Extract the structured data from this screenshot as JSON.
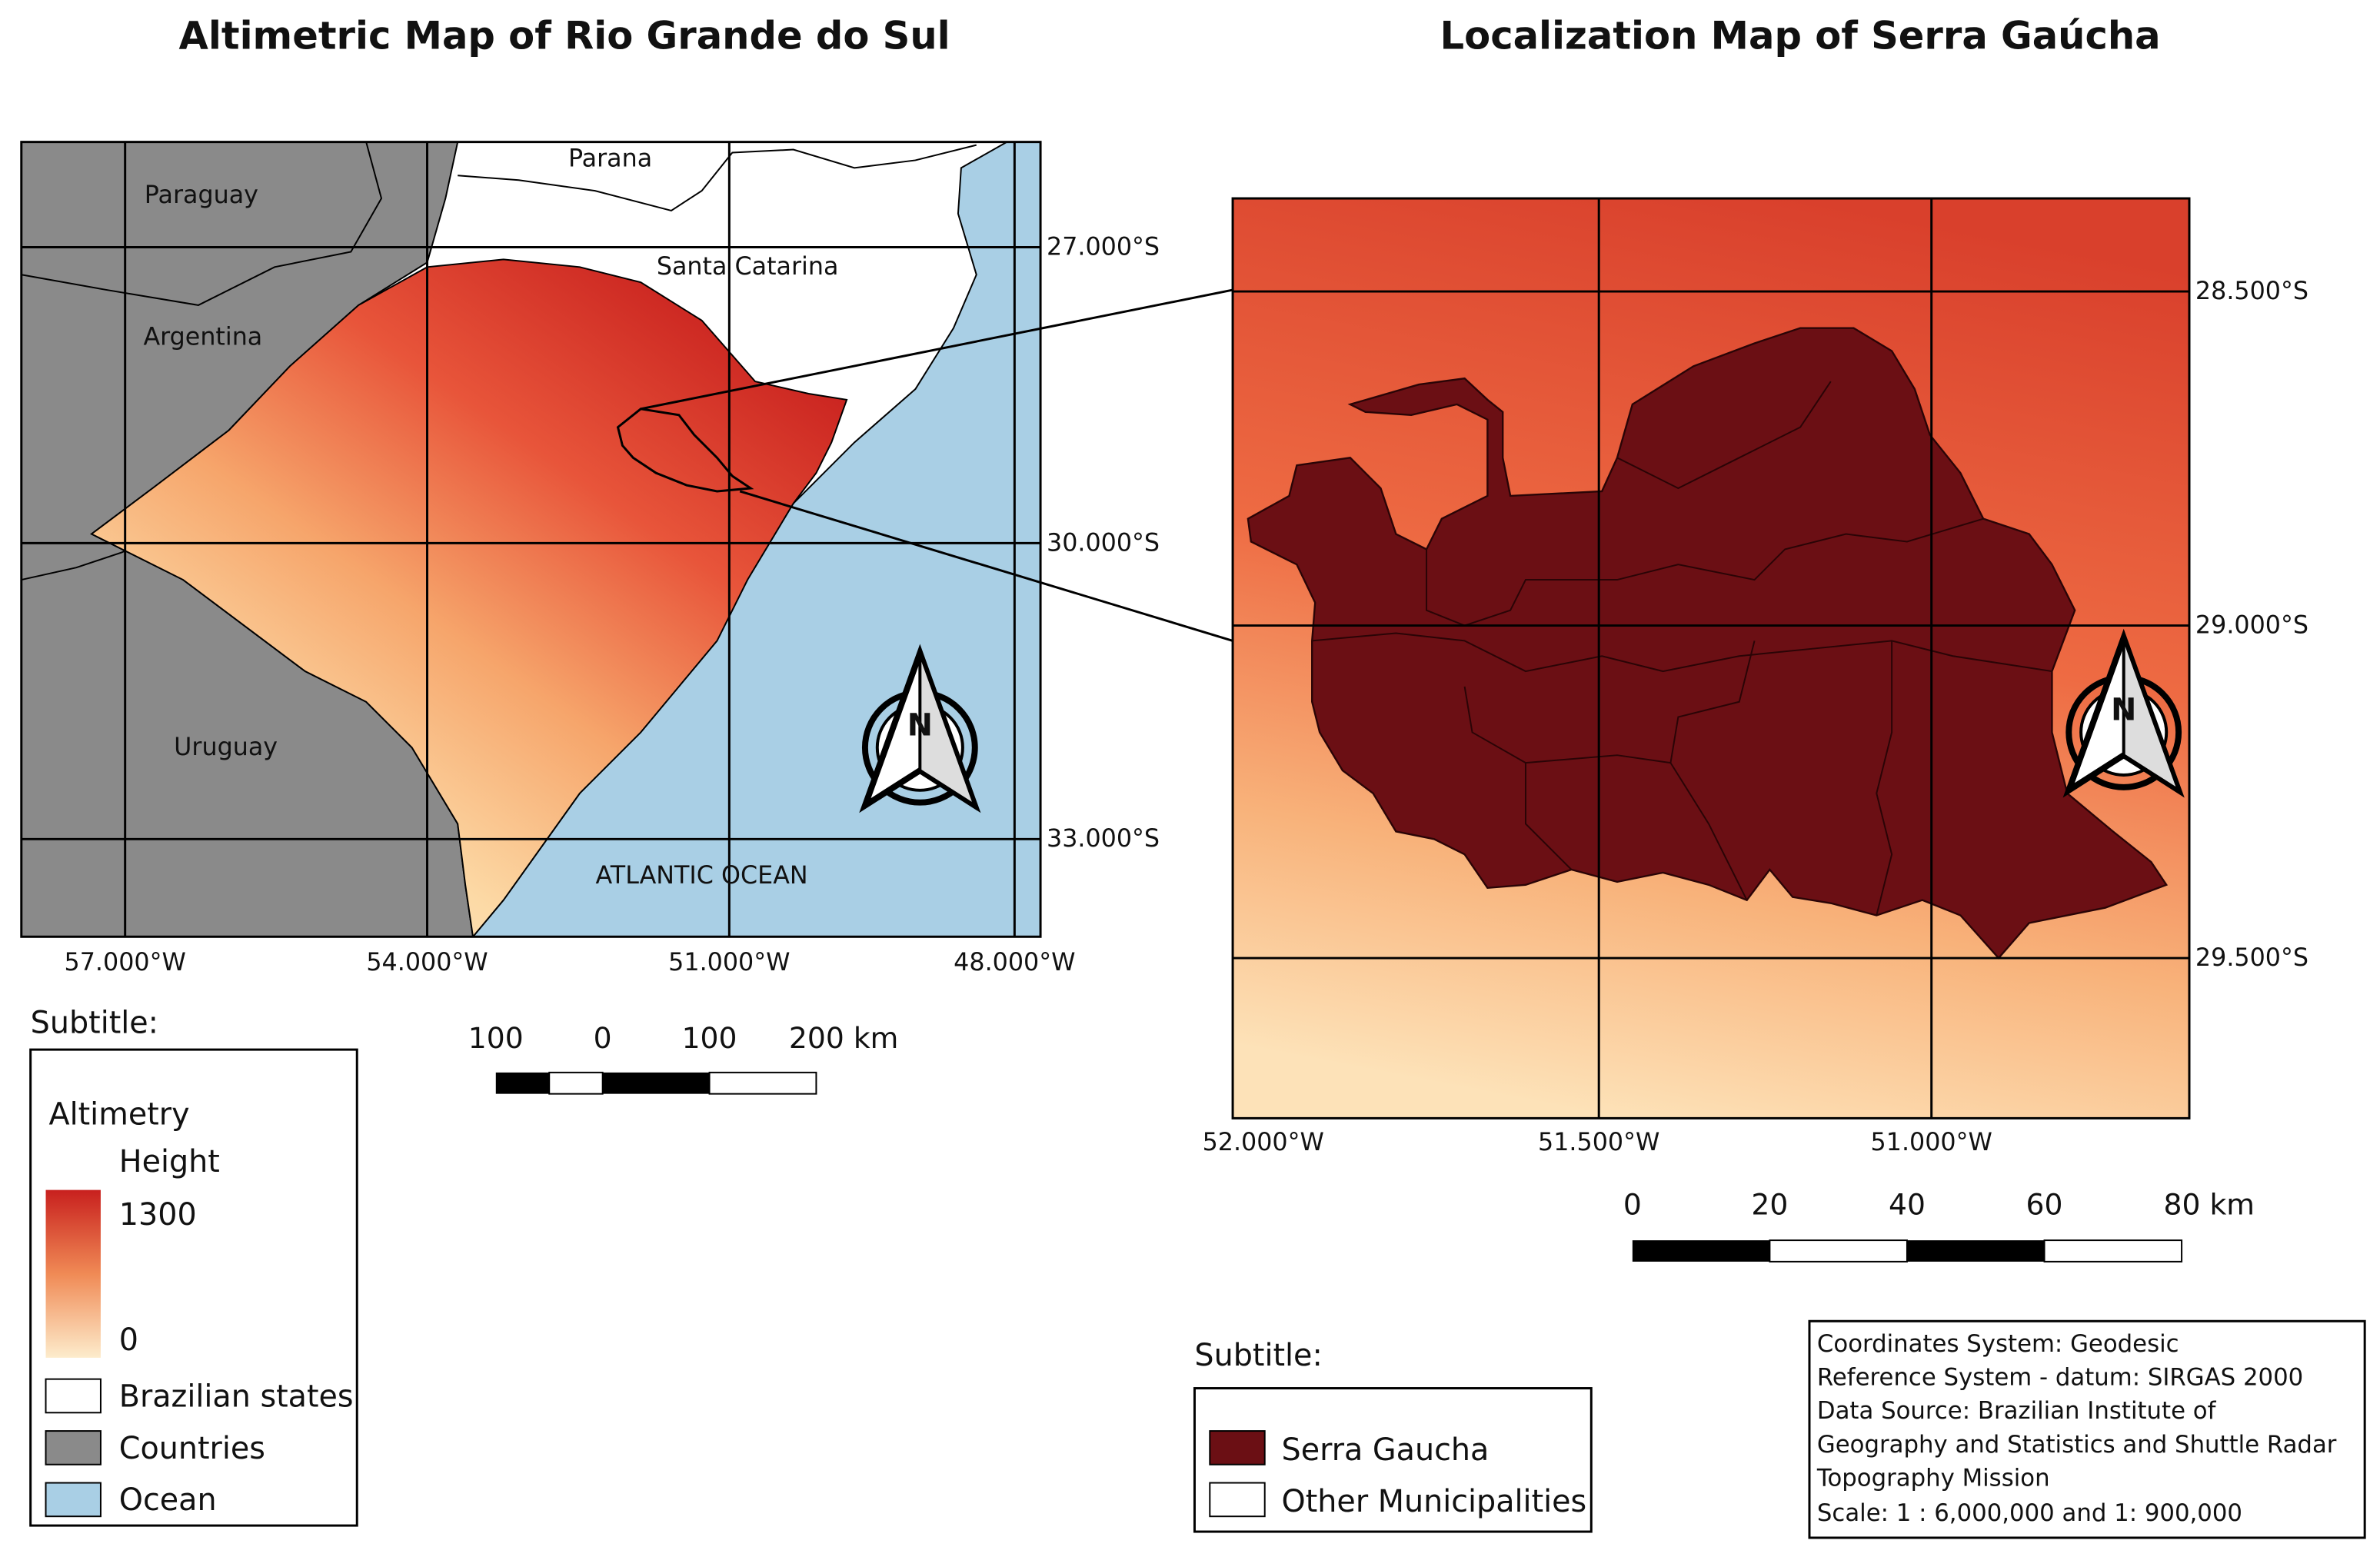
{
  "left_map": {
    "title": "Altimetric Map of Rio Grande do Sul",
    "place_labels": [
      "Paraguay",
      "Parana",
      "Santa Catarina",
      "Argentina",
      "Uruguay",
      "ATLANTIC OCEAN"
    ],
    "lat_labels": [
      "27.000°S",
      "30.000°S",
      "33.000°S"
    ],
    "lon_labels": [
      "57.000°W",
      "54.000°W",
      "51.000°W",
      "48.000°W"
    ],
    "north": "N",
    "scale_labels": [
      "100",
      "0",
      "100",
      "200 km"
    ]
  },
  "left_legend": {
    "title": "Subtitle:",
    "altimetry": "Altimetry",
    "height": "Height",
    "max": "1300",
    "min": "0",
    "items": [
      "Brazilian states",
      "Countries",
      "Ocean"
    ]
  },
  "right_map": {
    "title": "Localization Map of Serra Gaúcha",
    "lat_labels": [
      "28.500°S",
      "29.000°S",
      "29.500°S"
    ],
    "lon_labels": [
      "52.000°W",
      "51.500°W",
      "51.000°W"
    ],
    "north": "N",
    "scale_labels": [
      "0",
      "20",
      "40",
      "60",
      "80 km"
    ]
  },
  "right_legend": {
    "title": "Subtitle:",
    "items": [
      "Serra Gaucha",
      "Other Municipalities"
    ]
  },
  "info_box": {
    "lines": [
      "Coordinates System: Geodesic",
      "Reference System - datum: SIRGAS 2000",
      "Data Source: Brazilian Institute of",
      "Geography and Statistics and Shuttle Radar",
      "Topography Mission",
      "Scale: 1 : 6,000,000 and 1: 900,000"
    ]
  }
}
